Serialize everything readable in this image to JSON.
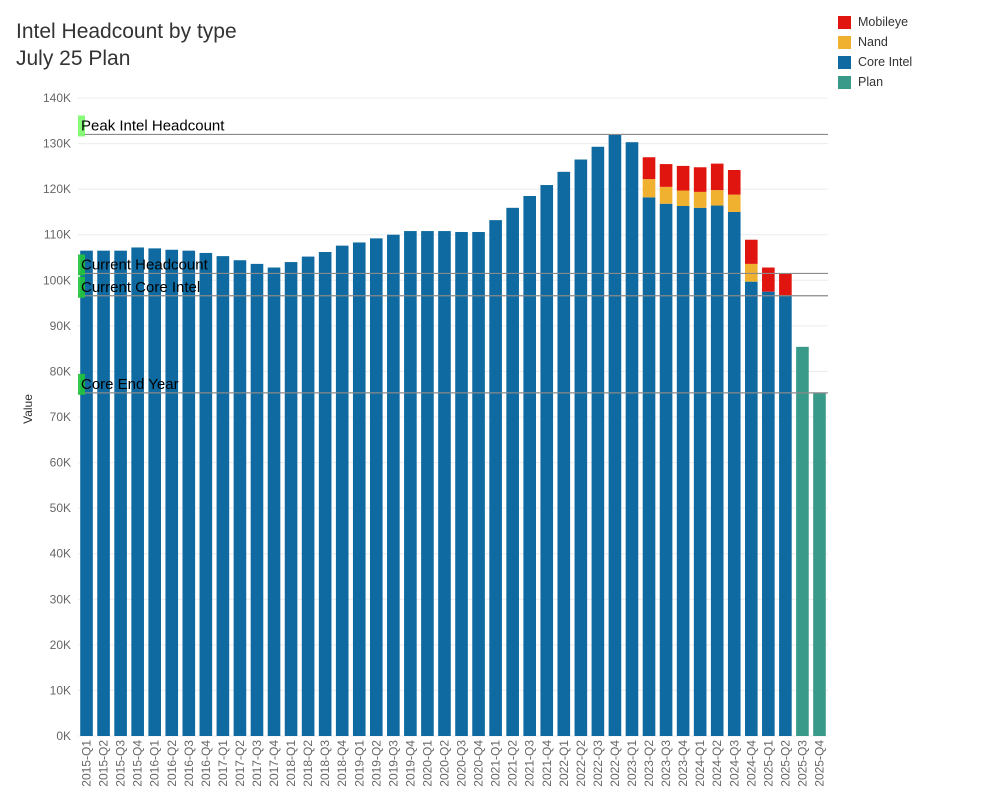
{
  "title": {
    "line1": "Intel Headcount by type",
    "line2": "July 25 Plan"
  },
  "legend": [
    {
      "name": "Mobileye",
      "color": "#e0150f"
    },
    {
      "name": "Nand",
      "color": "#f0b030"
    },
    {
      "name": "Core Intel",
      "color": "#0e6aa0"
    },
    {
      "name": "Plan",
      "color": "#3a9a8a"
    }
  ],
  "chart_data": {
    "type": "bar",
    "stacked": true,
    "ylabel": "Value",
    "ylim": [
      0,
      140000
    ],
    "yticks": [
      0,
      10000,
      20000,
      30000,
      40000,
      50000,
      60000,
      70000,
      80000,
      90000,
      100000,
      110000,
      120000,
      130000,
      140000
    ],
    "ytick_labels": [
      "0K",
      "10K",
      "20K",
      "30K",
      "40K",
      "50K",
      "60K",
      "70K",
      "80K",
      "90K",
      "100K",
      "110K",
      "120K",
      "130K",
      "140K"
    ],
    "categories": [
      "2015-Q1",
      "2015-Q2",
      "2015-Q3",
      "2015-Q4",
      "2016-Q1",
      "2016-Q2",
      "2016-Q3",
      "2016-Q4",
      "2017-Q1",
      "2017-Q2",
      "2017-Q3",
      "2017-Q4",
      "2018-Q1",
      "2018-Q2",
      "2018-Q3",
      "2018-Q4",
      "2019-Q1",
      "2019-Q2",
      "2019-Q3",
      "2019-Q4",
      "2020-Q1",
      "2020-Q2",
      "2020-Q3",
      "2020-Q4",
      "2021-Q1",
      "2021-Q2",
      "2021-Q3",
      "2021-Q4",
      "2022-Q1",
      "2022-Q2",
      "2022-Q3",
      "2022-Q4",
      "2023-Q1",
      "2023-Q2",
      "2023-Q3",
      "2023-Q4",
      "2024-Q1",
      "2024-Q2",
      "2024-Q3",
      "2024-Q4",
      "2025-Q1",
      "2025-Q2",
      "2025-Q3",
      "2025-Q4"
    ],
    "series": [
      {
        "name": "Core Intel",
        "color": "#0e6aa0",
        "values": [
          106500,
          106500,
          106500,
          107200,
          107000,
          106700,
          106500,
          106000,
          105300,
          104400,
          103600,
          102800,
          104000,
          105200,
          106200,
          107600,
          108300,
          109200,
          110000,
          110800,
          110800,
          110800,
          110600,
          110600,
          113200,
          115900,
          118500,
          120900,
          123800,
          126500,
          129300,
          131900,
          130300,
          118200,
          116800,
          116300,
          115900,
          116400,
          115000,
          99700,
          97500,
          96600,
          0,
          0
        ]
      },
      {
        "name": "Nand",
        "color": "#f0b030",
        "values": [
          0,
          0,
          0,
          0,
          0,
          0,
          0,
          0,
          0,
          0,
          0,
          0,
          0,
          0,
          0,
          0,
          0,
          0,
          0,
          0,
          0,
          0,
          0,
          0,
          0,
          0,
          0,
          0,
          0,
          0,
          0,
          0,
          0,
          4000,
          3700,
          3400,
          3500,
          3400,
          3800,
          3900,
          0,
          0,
          0,
          0
        ]
      },
      {
        "name": "Mobileye",
        "color": "#e0150f",
        "values": [
          0,
          0,
          0,
          0,
          0,
          0,
          0,
          0,
          0,
          0,
          0,
          0,
          0,
          0,
          0,
          0,
          0,
          0,
          0,
          0,
          0,
          0,
          0,
          0,
          0,
          0,
          0,
          0,
          0,
          0,
          0,
          0,
          0,
          4800,
          5000,
          5400,
          5400,
          5800,
          5400,
          5300,
          5300,
          4900,
          0,
          0
        ]
      },
      {
        "name": "Plan",
        "color": "#3a9a8a",
        "values": [
          0,
          0,
          0,
          0,
          0,
          0,
          0,
          0,
          0,
          0,
          0,
          0,
          0,
          0,
          0,
          0,
          0,
          0,
          0,
          0,
          0,
          0,
          0,
          0,
          0,
          0,
          0,
          0,
          0,
          0,
          0,
          0,
          0,
          0,
          0,
          0,
          0,
          0,
          0,
          0,
          0,
          0,
          85400,
          75300
        ]
      }
    ],
    "reference_lines": [
      {
        "label": "Peak Intel Headcount",
        "value": 132000,
        "label_color": "#7cfc6a"
      },
      {
        "label": "Current Headcount",
        "value": 101500,
        "label_color": "#22c43a"
      },
      {
        "label": "Current Core Intel",
        "value": 96600,
        "label_color": "#22c43a"
      },
      {
        "label": "Core End Year",
        "value": 75300,
        "label_color": "#22c43a"
      }
    ]
  }
}
